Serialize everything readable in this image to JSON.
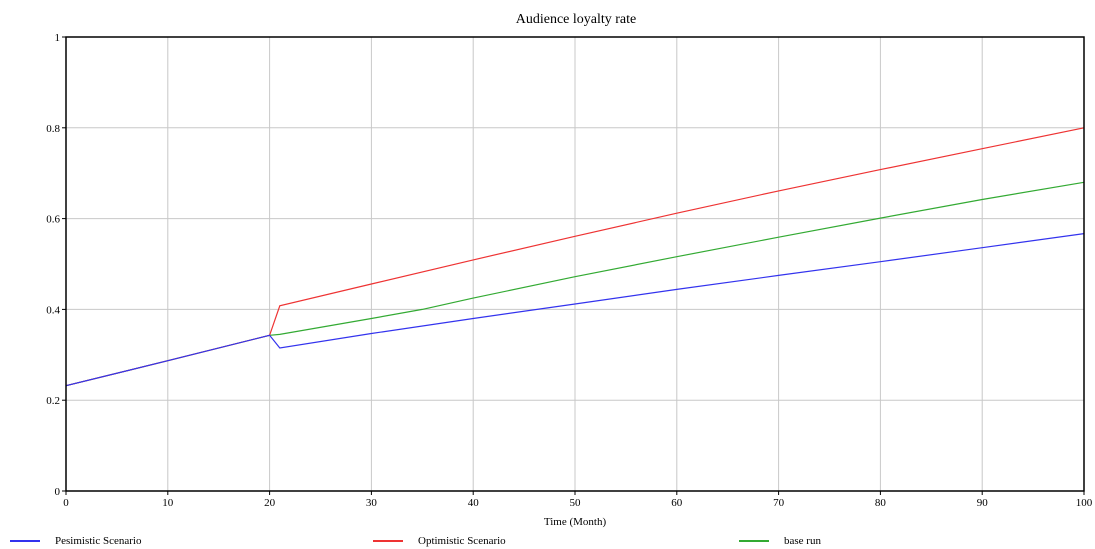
{
  "chart_data": {
    "type": "line",
    "title": "Audience loyalty rate",
    "xlabel": "Time (Month)",
    "ylabel": "",
    "xlim": [
      0,
      100
    ],
    "ylim": [
      0,
      1
    ],
    "xticks": [
      0,
      10,
      20,
      30,
      40,
      50,
      60,
      70,
      80,
      90,
      100
    ],
    "xtick_labels": [
      "0",
      "10",
      "20",
      "30",
      "40",
      "50",
      "60",
      "70",
      "80",
      "90",
      "100"
    ],
    "yticks": [
      0,
      0.2,
      0.4,
      0.6,
      0.8,
      1
    ],
    "ytick_labels": [
      "0",
      "0.2",
      "0.4",
      "0.6",
      "0.8",
      "1"
    ],
    "grid": true,
    "legend_position": "bottom",
    "series": [
      {
        "name": "Pesimistic Scenario",
        "color": "#3333ee",
        "x": [
          0,
          10,
          20,
          21,
          30,
          40,
          50,
          60,
          70,
          80,
          90,
          100
        ],
        "y": [
          0.232,
          0.287,
          0.343,
          0.315,
          0.347,
          0.38,
          0.412,
          0.444,
          0.475,
          0.505,
          0.536,
          0.567
        ]
      },
      {
        "name": "Optimistic Scenario",
        "color": "#ee3333",
        "x": [
          0,
          10,
          20,
          21,
          30,
          40,
          50,
          60,
          70,
          80,
          90,
          100
        ],
        "y": [
          0.232,
          0.287,
          0.343,
          0.408,
          0.456,
          0.509,
          0.561,
          0.612,
          0.661,
          0.708,
          0.754,
          0.8
        ]
      },
      {
        "name": "base run",
        "color": "#33aa33",
        "x": [
          0,
          10,
          20,
          21,
          30,
          35,
          40,
          50,
          60,
          70,
          80,
          90,
          100
        ],
        "y": [
          0.232,
          0.287,
          0.343,
          0.345,
          0.38,
          0.4,
          0.425,
          0.472,
          0.516,
          0.559,
          0.601,
          0.642,
          0.68
        ]
      }
    ]
  },
  "legend": [
    {
      "label": "Pesimistic Scenario",
      "color": "#3333ee"
    },
    {
      "label": "Optimistic Scenario",
      "color": "#ee3333"
    },
    {
      "label": "base run",
      "color": "#33aa33"
    }
  ]
}
